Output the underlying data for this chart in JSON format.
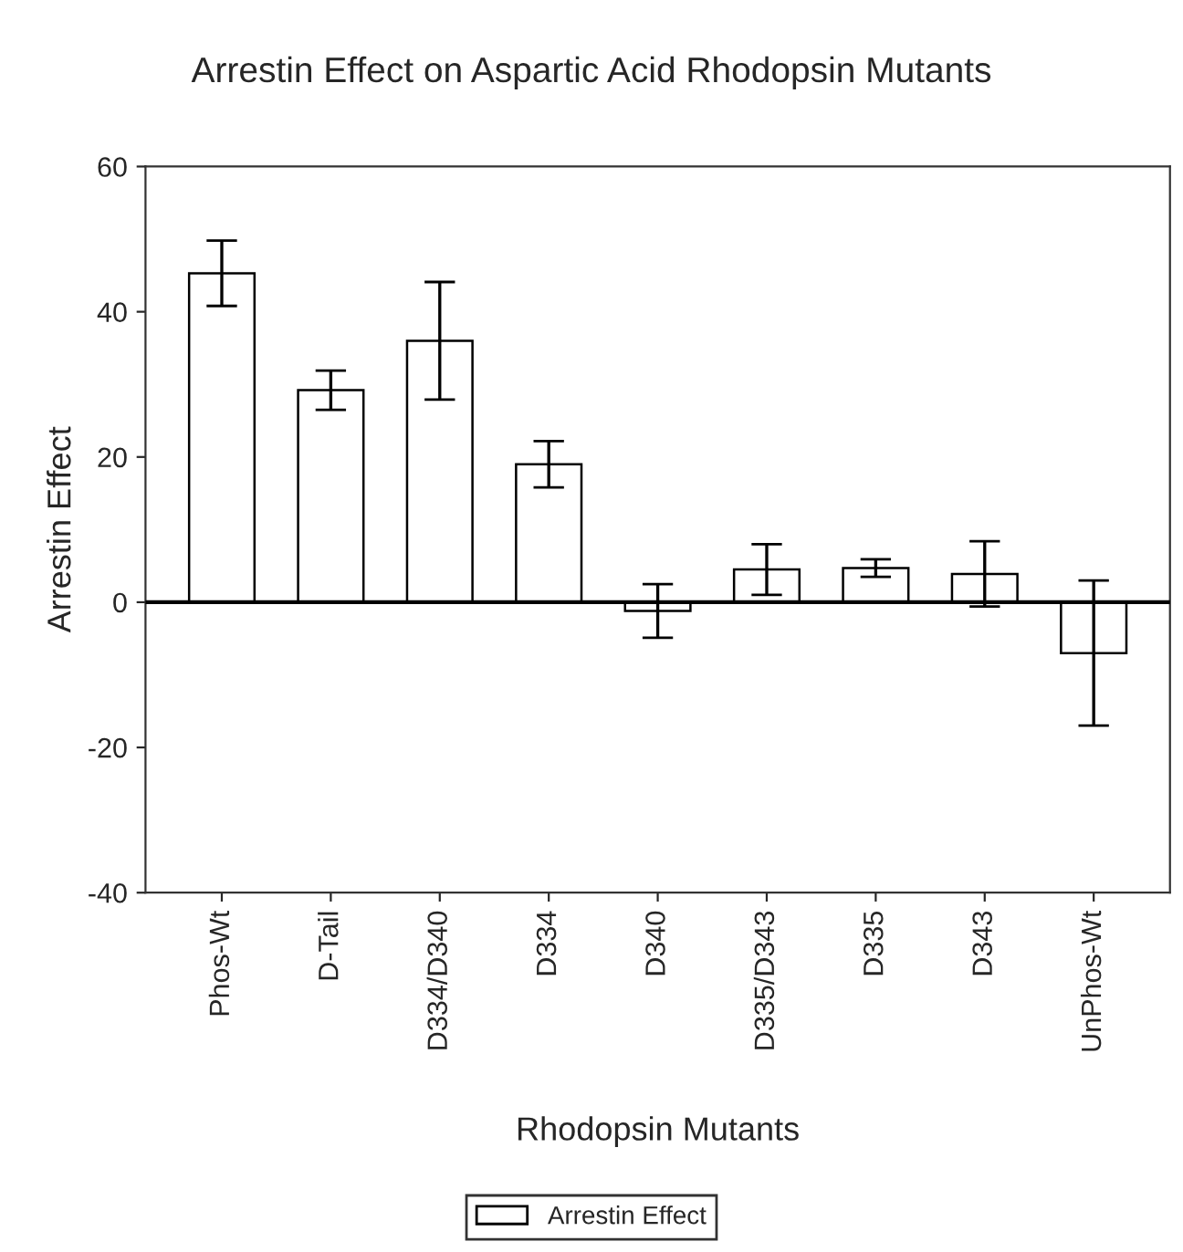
{
  "chart_data": {
    "type": "bar",
    "title": "Arrestin Effect on Aspartic Acid Rhodopsin Mutants",
    "xlabel": "Rhodopsin Mutants",
    "ylabel": "Arrestin Effect",
    "categories": [
      "Phos-Wt",
      "D-Tail",
      "D334/D340",
      "D334",
      "D340",
      "D335/D343",
      "D335",
      "D343",
      "UnPhos-Wt"
    ],
    "series": [
      {
        "name": "Arrestin Effect",
        "color": "#ffffff",
        "values": [
          45.3,
          29.2,
          36.0,
          19.0,
          -1.2,
          4.5,
          4.7,
          3.9,
          -7.0
        ],
        "errors": [
          4.5,
          2.7,
          8.1,
          3.2,
          3.7,
          3.5,
          1.2,
          4.5,
          10.0
        ]
      }
    ],
    "ylim": [
      -40,
      60
    ],
    "yticks": [
      -40,
      -20,
      0,
      20,
      40,
      60
    ],
    "ref_lines": [
      {
        "axis": "y",
        "value": 0,
        "color": "#000000"
      }
    ],
    "grid": false,
    "legend": "bottom"
  }
}
